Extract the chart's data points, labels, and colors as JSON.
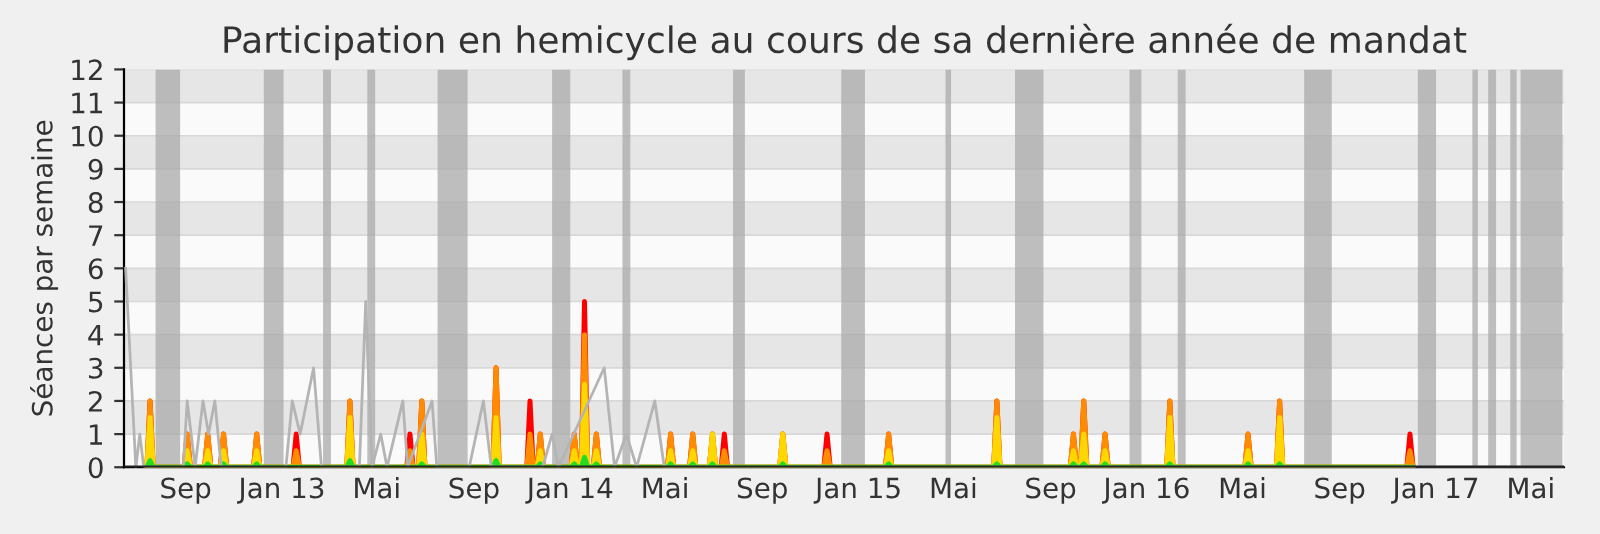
{
  "chart_data": {
    "type": "area",
    "title": "Participation en hemicycle au cours de sa dernière année de mandat",
    "ylabel": "Séances par semaine",
    "x": [
      "2012-07-14",
      "2012-07-18",
      "2012-07-22",
      "2012-08-30",
      "2012-09-03",
      "2012-09-07",
      "2012-09-25",
      "2012-09-29",
      "2012-10-03",
      "2012-10-15",
      "2012-10-19",
      "2012-10-23",
      "2012-11-26",
      "2012-11-30",
      "2012-12-04",
      "2013-01-15",
      "2013-01-19",
      "2013-01-23",
      "2013-03-24",
      "2013-03-28",
      "2013-04-01",
      "2013-06-08",
      "2013-06-12",
      "2013-06-16",
      "2013-06-23",
      "2013-06-27",
      "2013-07-01",
      "2013-09-25",
      "2013-09-29",
      "2013-10-03",
      "2013-11-07",
      "2013-11-11",
      "2013-11-15",
      "2013-11-20",
      "2013-11-24",
      "2013-11-28",
      "2014-01-02",
      "2014-01-06",
      "2014-01-10",
      "2014-01-15",
      "2014-01-19",
      "2014-01-23",
      "2014-01-30",
      "2014-02-03",
      "2014-02-07",
      "2014-05-04",
      "2014-05-08",
      "2014-05-12",
      "2014-06-01",
      "2014-06-05",
      "2014-06-09",
      "2014-06-26",
      "2014-06-30",
      "2014-07-04",
      "2014-07-11",
      "2014-07-15",
      "2014-07-19",
      "2014-09-23",
      "2014-09-27",
      "2014-10-01",
      "2014-11-18",
      "2014-11-22",
      "2014-11-26",
      "2015-02-04",
      "2015-02-08",
      "2015-02-12",
      "2015-06-21",
      "2015-06-25",
      "2015-06-29",
      "2015-09-26",
      "2015-09-30",
      "2015-10-04",
      "2015-10-09",
      "2015-10-13",
      "2015-10-17",
      "2015-11-05",
      "2015-11-09",
      "2015-11-13",
      "2016-01-26",
      "2016-01-30",
      "2016-02-03",
      "2016-05-04",
      "2016-05-08",
      "2016-05-12",
      "2016-06-13",
      "2016-06-17",
      "2016-06-21",
      "2016-11-25",
      "2016-11-29",
      "2016-12-03"
    ],
    "series": [
      {
        "color": "#ff0000",
        "values": [
          0,
          2,
          0,
          0,
          1,
          0,
          0,
          1,
          0,
          0,
          1,
          0,
          0,
          1,
          0,
          0,
          1,
          0,
          0,
          2,
          0,
          0,
          1,
          0,
          0,
          2,
          0,
          0,
          3,
          0,
          0,
          2,
          0,
          0,
          1,
          0,
          0,
          1,
          0,
          0,
          5,
          0,
          0,
          1,
          0,
          0,
          1,
          0,
          0,
          1,
          0,
          0,
          1,
          0,
          0,
          1,
          0,
          0,
          1,
          0,
          0,
          1,
          0,
          0,
          1,
          0,
          0,
          2,
          0,
          0,
          1,
          0,
          0,
          2,
          0,
          0,
          1,
          0,
          0,
          2,
          0,
          0,
          1,
          0,
          0,
          2,
          0,
          0,
          1,
          0
        ]
      },
      {
        "color": "#ff8c00",
        "values": [
          0,
          2,
          0,
          0,
          1,
          0,
          0,
          1,
          0,
          0,
          1,
          0,
          0,
          1,
          0,
          0,
          0.5,
          0,
          0,
          2,
          0,
          0,
          0.5,
          0,
          0,
          2,
          0,
          0,
          3,
          0,
          0,
          1,
          0,
          0,
          1,
          0,
          0,
          1,
          0,
          0,
          4,
          0,
          0,
          1,
          0,
          0,
          1,
          0,
          0,
          1,
          0,
          0,
          1,
          0,
          0,
          0.5,
          0,
          0,
          1,
          0,
          0,
          0.5,
          0,
          0,
          1,
          0,
          0,
          2,
          0,
          0,
          1,
          0,
          0,
          2,
          0,
          0,
          1,
          0,
          0,
          2,
          0,
          0,
          1,
          0,
          0,
          2,
          0,
          0,
          0.5,
          0
        ]
      },
      {
        "color": "#ffd700",
        "values": [
          0,
          1.5,
          0,
          0,
          0.5,
          0,
          0,
          0.5,
          0,
          0,
          0.5,
          0,
          0,
          0.5,
          0,
          0,
          0,
          0,
          0,
          1.5,
          0,
          0,
          0,
          0,
          0,
          1,
          0,
          0,
          1.5,
          0,
          0,
          0,
          0,
          0,
          0.5,
          0,
          0,
          0.5,
          0,
          0,
          2.5,
          0,
          0,
          0.5,
          0,
          0,
          0.5,
          0,
          0,
          0.5,
          0,
          0,
          1,
          0,
          0,
          0,
          0,
          0,
          1,
          0,
          0,
          0,
          0,
          0,
          0.5,
          0,
          0,
          1.5,
          0,
          0,
          0.5,
          0,
          0,
          1,
          0,
          0,
          0.5,
          0,
          0,
          1.5,
          0,
          0,
          0.5,
          0,
          0,
          1.5,
          0,
          0,
          0,
          0
        ]
      },
      {
        "color": "#22dd22",
        "values": [
          0,
          0.2,
          0,
          0,
          0.1,
          0,
          0,
          0.1,
          0,
          0,
          0.1,
          0,
          0,
          0.1,
          0,
          0,
          0,
          0,
          0,
          0.2,
          0,
          0,
          0,
          0,
          0,
          0.1,
          0,
          0,
          0.2,
          0,
          0,
          0,
          0,
          0,
          0.1,
          0,
          0,
          0.1,
          0,
          0,
          0.3,
          0,
          0,
          0.1,
          0,
          0,
          0.1,
          0,
          0,
          0.1,
          0,
          0,
          0.1,
          0,
          0,
          0,
          0,
          0,
          0.1,
          0,
          0,
          0,
          0,
          0,
          0.1,
          0,
          0,
          0.1,
          0,
          0,
          0.1,
          0,
          0,
          0.1,
          0,
          0,
          0.1,
          0,
          0,
          0.1,
          0,
          0,
          0.1,
          0,
          0,
          0.1,
          0,
          0,
          0,
          0
        ]
      },
      {
        "type": "line",
        "color": "#b4b4b4",
        "x": [
          "2012-06-17",
          "2012-06-30",
          "2012-07-05",
          "2012-07-10",
          "2012-08-29",
          "2012-09-03",
          "2012-09-13",
          "2012-09-23",
          "2012-09-30",
          "2012-10-08",
          "2012-10-16",
          "2013-01-06",
          "2013-01-14",
          "2013-01-24",
          "2013-02-10",
          "2013-02-20",
          "2013-04-09",
          "2013-04-17",
          "2013-04-25",
          "2013-05-06",
          "2013-05-14",
          "2013-05-24",
          "2013-06-03",
          "2013-06-09",
          "2013-07-10",
          "2013-07-16",
          "2013-08-26",
          "2013-09-13",
          "2013-09-23",
          "2013-11-27",
          "2013-12-09",
          "2013-12-17",
          "2014-02-13",
          "2014-02-26",
          "2014-03-13",
          "2014-03-26",
          "2014-04-18",
          "2014-04-30",
          "2017-06-10"
        ],
        "values": [
          6,
          0,
          1,
          0,
          0,
          2,
          0,
          2,
          1,
          2,
          0,
          0,
          2,
          1,
          3,
          0,
          0,
          5,
          0,
          1,
          0,
          1,
          2,
          0,
          2,
          0,
          0,
          2,
          0,
          0,
          1,
          0,
          3,
          0,
          1,
          0,
          2,
          0,
          0
        ]
      }
    ],
    "xlim": [
      "2012-06-15",
      "2017-06-12"
    ],
    "xticks": [
      {
        "value": "2012-09-01",
        "label": "Sep"
      },
      {
        "value": "2013-01-01",
        "label": "Jan 13"
      },
      {
        "value": "2013-05-01",
        "label": "Mai"
      },
      {
        "value": "2013-09-01",
        "label": "Sep"
      },
      {
        "value": "2014-01-01",
        "label": "Jan 14"
      },
      {
        "value": "2014-05-01",
        "label": "Mai"
      },
      {
        "value": "2014-09-01",
        "label": "Sep"
      },
      {
        "value": "2015-01-01",
        "label": "Jan 15"
      },
      {
        "value": "2015-05-01",
        "label": "Mai"
      },
      {
        "value": "2015-09-01",
        "label": "Sep"
      },
      {
        "value": "2016-01-01",
        "label": "Jan 16"
      },
      {
        "value": "2016-05-01",
        "label": "Mai"
      },
      {
        "value": "2016-09-01",
        "label": "Sep"
      },
      {
        "value": "2017-01-01",
        "label": "Jan 17"
      },
      {
        "value": "2017-05-01",
        "label": "Mai"
      }
    ],
    "ylim": [
      0,
      12
    ],
    "yticks": [
      0,
      1,
      2,
      3,
      4,
      5,
      6,
      7,
      8,
      9,
      10,
      11,
      12
    ],
    "grid": "y",
    "bands": [
      {
        "axis": "x",
        "from": "2012-07-25",
        "to": "2012-08-25",
        "color": "#aaaaaa"
      },
      {
        "axis": "x",
        "from": "2012-12-09",
        "to": "2013-01-03",
        "color": "#aaaaaa"
      },
      {
        "axis": "x",
        "from": "2013-02-22",
        "to": "2013-03-04",
        "color": "#aaaaaa"
      },
      {
        "axis": "x",
        "from": "2013-04-19",
        "to": "2013-04-29",
        "color": "#aaaaaa"
      },
      {
        "axis": "x",
        "from": "2013-07-17",
        "to": "2013-08-24",
        "color": "#aaaaaa"
      },
      {
        "axis": "x",
        "from": "2013-12-09",
        "to": "2014-01-01",
        "color": "#aaaaaa"
      },
      {
        "axis": "x",
        "from": "2014-03-08",
        "to": "2014-03-18",
        "color": "#aaaaaa"
      },
      {
        "axis": "x",
        "from": "2014-07-26",
        "to": "2014-08-10",
        "color": "#aaaaaa"
      },
      {
        "axis": "x",
        "from": "2014-12-10",
        "to": "2015-01-09",
        "color": "#aaaaaa"
      },
      {
        "axis": "x",
        "from": "2015-04-21",
        "to": "2015-04-28",
        "color": "#aaaaaa"
      },
      {
        "axis": "x",
        "from": "2015-07-18",
        "to": "2015-08-23",
        "color": "#aaaaaa"
      },
      {
        "axis": "x",
        "from": "2015-12-10",
        "to": "2015-12-25",
        "color": "#aaaaaa"
      },
      {
        "axis": "x",
        "from": "2016-02-09",
        "to": "2016-02-19",
        "color": "#aaaaaa"
      },
      {
        "axis": "x",
        "from": "2016-07-18",
        "to": "2016-08-22",
        "color": "#aaaaaa"
      },
      {
        "axis": "x",
        "from": "2016-12-09",
        "to": "2017-01-01",
        "color": "#aaaaaa"
      },
      {
        "axis": "x",
        "from": "2017-02-16",
        "to": "2017-02-23",
        "color": "#aaaaaa"
      },
      {
        "axis": "x",
        "from": "2017-03-08",
        "to": "2017-03-18",
        "color": "#aaaaaa"
      },
      {
        "axis": "x",
        "from": "2017-04-05",
        "to": "2017-04-13",
        "color": "#aaaaaa"
      },
      {
        "axis": "x",
        "from": "2017-04-18",
        "to": "2017-06-10",
        "color": "#aaaaaa"
      }
    ]
  }
}
